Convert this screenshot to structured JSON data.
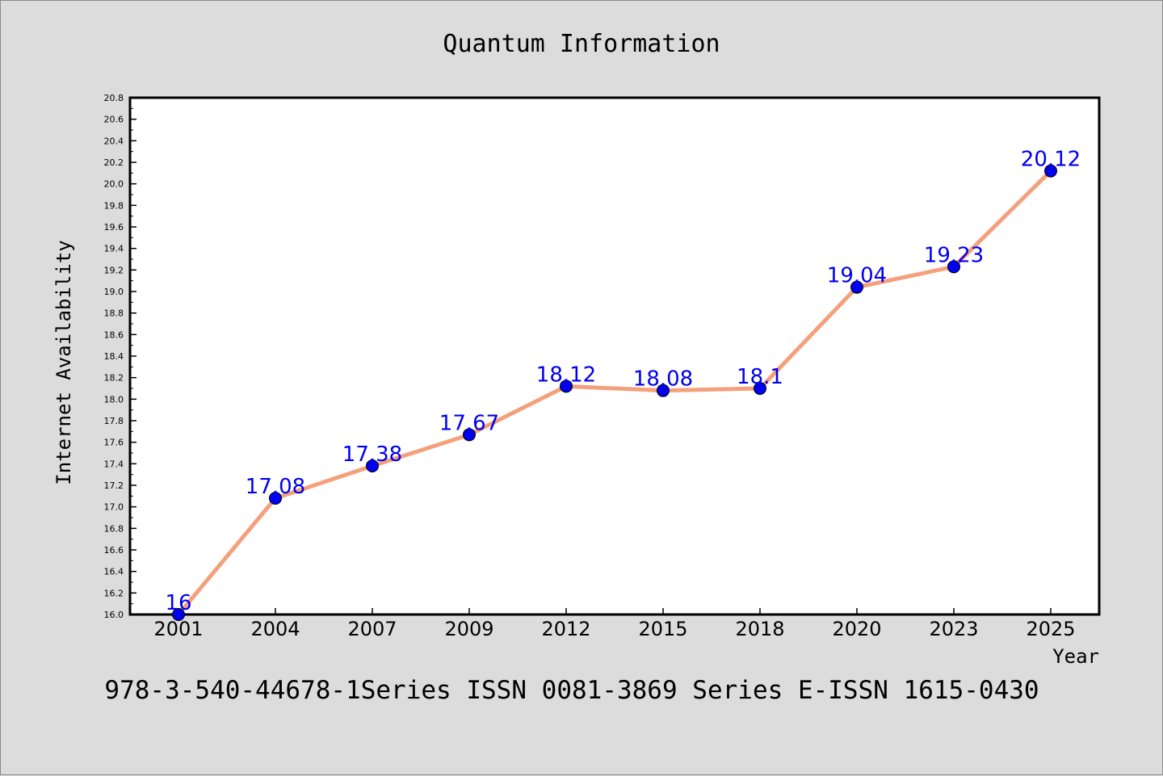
{
  "chart_data": {
    "type": "line",
    "title": "Quantum Information",
    "xlabel": "Year",
    "ylabel": "Internet Availability",
    "categories": [
      "2001",
      "2004",
      "2007",
      "2009",
      "2012",
      "2015",
      "2018",
      "2020",
      "2023",
      "2025"
    ],
    "series": [
      {
        "values": [
          16,
          17.08,
          17.38,
          17.67,
          18.12,
          18.08,
          18.1,
          19.04,
          19.23,
          20.12
        ],
        "data_labels": [
          "16",
          "17.08",
          "17.38",
          "17.67",
          "18.12",
          "18.08",
          "18.1",
          "19.04",
          "19.23",
          "20.12"
        ],
        "line_color": "#f4a07c",
        "marker_color": "#0000ee"
      }
    ],
    "ylim": [
      16.0,
      20.8
    ],
    "yticks": [
      "16.0",
      "16.2",
      "16.4",
      "16.6",
      "16.8",
      "17.0",
      "17.2",
      "17.4",
      "17.6",
      "17.8",
      "18.0",
      "18.2",
      "18.4",
      "18.6",
      "18.8",
      "19.0",
      "19.2",
      "19.4",
      "19.6",
      "19.8",
      "20.0",
      "20.2",
      "20.4",
      "20.6",
      "20.8"
    ],
    "grid": false,
    "legend": "none"
  },
  "footer": {
    "text": "978-3-540-44678-1Series ISSN 0081-3869 Series E-ISSN 1615-0430"
  },
  "colors": {
    "background": "#dcdcdc",
    "plot_background": "#ffffff",
    "line": "#f4a07c",
    "marker": "#0000ee",
    "label": "#0000ee"
  }
}
